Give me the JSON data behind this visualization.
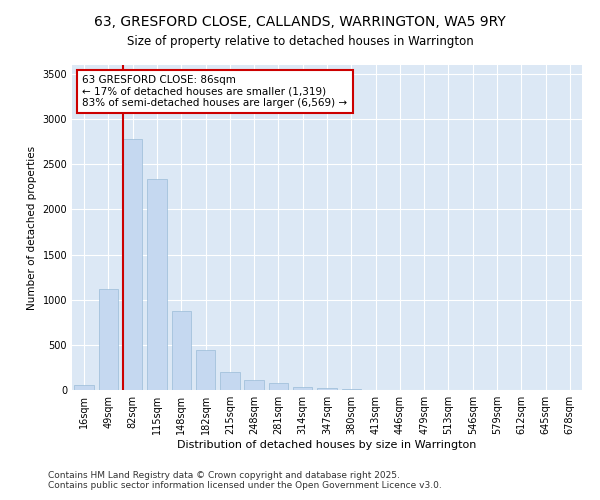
{
  "title1": "63, GRESFORD CLOSE, CALLANDS, WARRINGTON, WA5 9RY",
  "title2": "Size of property relative to detached houses in Warrington",
  "xlabel": "Distribution of detached houses by size in Warrington",
  "ylabel": "Number of detached properties",
  "categories": [
    "16sqm",
    "49sqm",
    "82sqm",
    "115sqm",
    "148sqm",
    "182sqm",
    "215sqm",
    "248sqm",
    "281sqm",
    "314sqm",
    "347sqm",
    "380sqm",
    "413sqm",
    "446sqm",
    "479sqm",
    "513sqm",
    "546sqm",
    "579sqm",
    "612sqm",
    "645sqm",
    "678sqm"
  ],
  "values": [
    50,
    1120,
    2780,
    2340,
    880,
    440,
    200,
    110,
    75,
    30,
    20,
    8,
    3,
    0,
    0,
    0,
    0,
    0,
    0,
    0,
    0
  ],
  "bar_color": "#c5d8f0",
  "bar_edge_color": "#9abcd8",
  "vline_x_idx": 2,
  "vline_color": "#cc0000",
  "annotation_title": "63 GRESFORD CLOSE: 86sqm",
  "annotation_line1": "← 17% of detached houses are smaller (1,319)",
  "annotation_line2": "83% of semi-detached houses are larger (6,569) →",
  "annotation_box_edgecolor": "#cc0000",
  "ylim": [
    0,
    3600
  ],
  "yticks": [
    0,
    500,
    1000,
    1500,
    2000,
    2500,
    3000,
    3500
  ],
  "figure_bg": "#ffffff",
  "plot_bg": "#dce8f5",
  "grid_color": "#ffffff",
  "title1_fontsize": 10,
  "title2_fontsize": 8.5,
  "xlabel_fontsize": 8,
  "ylabel_fontsize": 7.5,
  "tick_fontsize": 7,
  "annotation_fontsize": 7.5,
  "footer_fontsize": 6.5,
  "footer1": "Contains HM Land Registry data © Crown copyright and database right 2025.",
  "footer2": "Contains public sector information licensed under the Open Government Licence v3.0."
}
